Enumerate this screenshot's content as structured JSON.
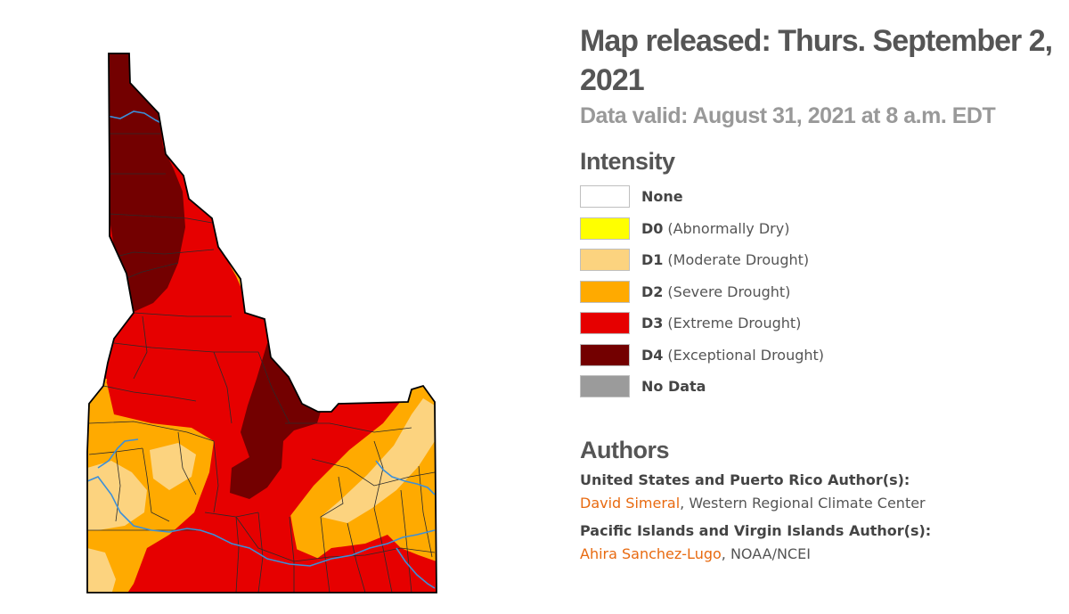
{
  "header": {
    "title": "Map released: Thurs. September 2, 2021",
    "subtitle": "Data valid: August 31, 2021 at 8 a.m. EDT"
  },
  "legend": {
    "heading": "Intensity",
    "items": [
      {
        "code": "None",
        "desc": "",
        "color": "#ffffff"
      },
      {
        "code": "D0",
        "desc": "(Abnormally Dry)",
        "color": "#ffff00"
      },
      {
        "code": "D1",
        "desc": "(Moderate Drought)",
        "color": "#fcd37f"
      },
      {
        "code": "D2",
        "desc": "(Severe Drought)",
        "color": "#ffaa00"
      },
      {
        "code": "D3",
        "desc": "(Extreme Drought)",
        "color": "#e60000"
      },
      {
        "code": "D4",
        "desc": "(Exceptional Drought)",
        "color": "#730000"
      },
      {
        "code": "No Data",
        "desc": "",
        "color": "#9b9b9b"
      }
    ]
  },
  "authors": {
    "heading": "Authors",
    "us_label": "United States and Puerto Rico Author(s):",
    "us_name": "David Simeral",
    "us_org": ", Western Regional Climate Center",
    "pi_label": "Pacific Islands and Virgin Islands Author(s):",
    "pi_name": "Ahira Sanchez-Lugo",
    "pi_org": ", NOAA/NCEI"
  },
  "map": {
    "region": "Idaho",
    "colors": {
      "D1": "#fcd37f",
      "D2": "#ffaa00",
      "D3": "#e60000",
      "D4": "#730000",
      "rivers": "#3b8fd9",
      "counties": "#2a2a2a"
    }
  }
}
